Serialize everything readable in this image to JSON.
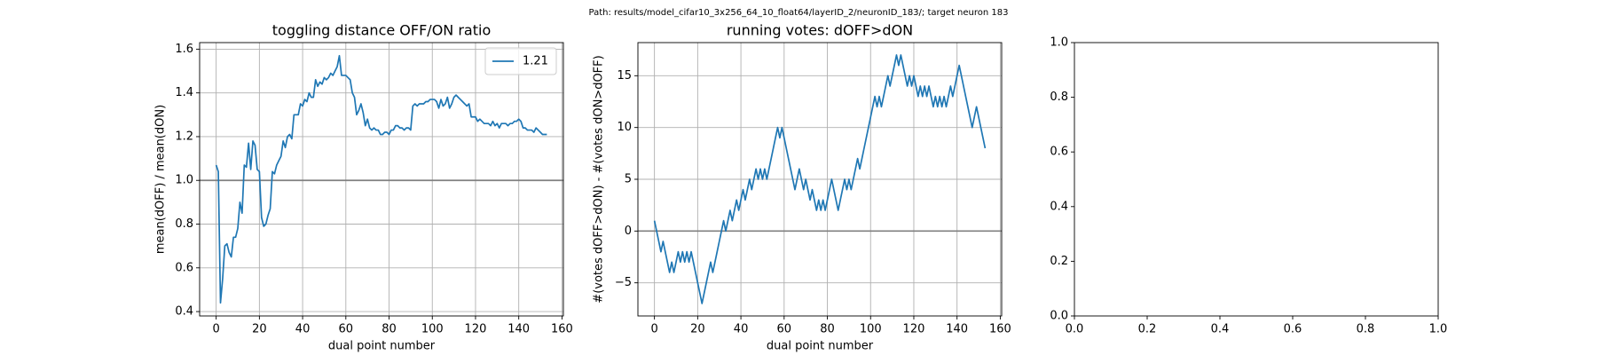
{
  "title": "Path: results/model_cifar10_3x256_64_10_float64/layerID_2/neuronID_183/; target neuron 183",
  "chart_data": [
    {
      "type": "line",
      "title": "toggling distance OFF/ON ratio",
      "xlabel": "dual point number",
      "ylabel": "mean(dOFF) / mean(dON)",
      "x": [
        0,
        1,
        2,
        3,
        4,
        5,
        6,
        7,
        8,
        9,
        10,
        11,
        12,
        13,
        14,
        15,
        16,
        17,
        18,
        19,
        20,
        21,
        22,
        23,
        24,
        25,
        26,
        27,
        28,
        29,
        30,
        31,
        32,
        33,
        34,
        35,
        36,
        37,
        38,
        39,
        40,
        41,
        42,
        43,
        44,
        45,
        46,
        47,
        48,
        49,
        50,
        51,
        52,
        53,
        54,
        55,
        56,
        57,
        58,
        59,
        60,
        61,
        62,
        63,
        64,
        65,
        66,
        67,
        68,
        69,
        70,
        71,
        72,
        73,
        74,
        75,
        76,
        77,
        78,
        79,
        80,
        81,
        82,
        83,
        84,
        85,
        86,
        87,
        88,
        89,
        90,
        91,
        92,
        93,
        94,
        95,
        96,
        97,
        98,
        99,
        100,
        101,
        102,
        103,
        104,
        105,
        106,
        107,
        108,
        109,
        110,
        111,
        112,
        113,
        114,
        115,
        116,
        117,
        118,
        119,
        120,
        121,
        122,
        123,
        124,
        125,
        126,
        127,
        128,
        129,
        130,
        131,
        132,
        133,
        134,
        135,
        136,
        137,
        138,
        139,
        140,
        141,
        142,
        143,
        144,
        145,
        146,
        147,
        148,
        149,
        150,
        151,
        152,
        153
      ],
      "series": [
        {
          "name": "1.21",
          "color": "#1f77b4",
          "values": [
            1.07,
            1.04,
            0.44,
            0.55,
            0.7,
            0.71,
            0.67,
            0.65,
            0.74,
            0.74,
            0.78,
            0.9,
            0.85,
            1.07,
            1.06,
            1.17,
            1.05,
            1.18,
            1.16,
            1.05,
            1.04,
            0.83,
            0.79,
            0.8,
            0.84,
            0.87,
            1.04,
            1.03,
            1.07,
            1.09,
            1.11,
            1.18,
            1.15,
            1.2,
            1.21,
            1.19,
            1.3,
            1.3,
            1.3,
            1.35,
            1.34,
            1.37,
            1.36,
            1.4,
            1.38,
            1.38,
            1.46,
            1.43,
            1.45,
            1.44,
            1.47,
            1.46,
            1.47,
            1.49,
            1.48,
            1.5,
            1.52,
            1.57,
            1.48,
            1.48,
            1.48,
            1.47,
            1.46,
            1.4,
            1.38,
            1.3,
            1.32,
            1.35,
            1.31,
            1.25,
            1.28,
            1.24,
            1.23,
            1.24,
            1.23,
            1.23,
            1.21,
            1.21,
            1.22,
            1.22,
            1.21,
            1.23,
            1.23,
            1.25,
            1.25,
            1.24,
            1.24,
            1.23,
            1.24,
            1.24,
            1.23,
            1.34,
            1.35,
            1.34,
            1.35,
            1.35,
            1.35,
            1.36,
            1.36,
            1.37,
            1.37,
            1.37,
            1.36,
            1.33,
            1.37,
            1.34,
            1.35,
            1.38,
            1.33,
            1.35,
            1.38,
            1.39,
            1.38,
            1.37,
            1.36,
            1.35,
            1.34,
            1.35,
            1.29,
            1.29,
            1.29,
            1.27,
            1.28,
            1.27,
            1.26,
            1.26,
            1.26,
            1.25,
            1.27,
            1.25,
            1.26,
            1.24,
            1.26,
            1.26,
            1.26,
            1.25,
            1.26,
            1.26,
            1.27,
            1.27,
            1.28,
            1.27,
            1.24,
            1.24,
            1.23,
            1.23,
            1.23,
            1.22,
            1.24,
            1.23,
            1.22,
            1.21,
            1.21,
            1.21
          ]
        }
      ],
      "hline": 1,
      "xlim": [
        -7.65,
        160.65
      ],
      "xticks": [
        0,
        20,
        40,
        60,
        80,
        100,
        120,
        140,
        160
      ],
      "ylim": [
        0.38,
        1.63
      ],
      "yticks": [
        0.4,
        0.6,
        0.8,
        {
          "value": 1,
          "label": "1.0"
        },
        1.2,
        1.4,
        1.6
      ],
      "grid": true,
      "legend": "upper right"
    },
    {
      "type": "line",
      "title": "running votes: dOFF>dON",
      "xlabel": "dual point number",
      "ylabel": "#(votes dOFF>dON) - #(votes dON>dOFF)",
      "x": [
        0,
        1,
        2,
        3,
        4,
        5,
        6,
        7,
        8,
        9,
        10,
        11,
        12,
        13,
        14,
        15,
        16,
        17,
        18,
        19,
        20,
        21,
        22,
        23,
        24,
        25,
        26,
        27,
        28,
        29,
        30,
        31,
        32,
        33,
        34,
        35,
        36,
        37,
        38,
        39,
        40,
        41,
        42,
        43,
        44,
        45,
        46,
        47,
        48,
        49,
        50,
        51,
        52,
        53,
        54,
        55,
        56,
        57,
        58,
        59,
        60,
        61,
        62,
        63,
        64,
        65,
        66,
        67,
        68,
        69,
        70,
        71,
        72,
        73,
        74,
        75,
        76,
        77,
        78,
        79,
        80,
        81,
        82,
        83,
        84,
        85,
        86,
        87,
        88,
        89,
        90,
        91,
        92,
        93,
        94,
        95,
        96,
        97,
        98,
        99,
        100,
        101,
        102,
        103,
        104,
        105,
        106,
        107,
        108,
        109,
        110,
        111,
        112,
        113,
        114,
        115,
        116,
        117,
        118,
        119,
        120,
        121,
        122,
        123,
        124,
        125,
        126,
        127,
        128,
        129,
        130,
        131,
        132,
        133,
        134,
        135,
        136,
        137,
        138,
        139,
        140,
        141,
        142,
        143,
        144,
        145,
        146,
        147,
        148,
        149,
        150,
        151,
        152,
        153
      ],
      "series": [
        {
          "color": "#1f77b4",
          "values": [
            1,
            0,
            -1,
            -2,
            -1,
            -2,
            -3,
            -4,
            -3,
            -4,
            -3,
            -2,
            -3,
            -2,
            -3,
            -2,
            -3,
            -2,
            -3,
            -4,
            -5,
            -6,
            -7,
            -6,
            -5,
            -4,
            -3,
            -4,
            -3,
            -2,
            -1,
            0,
            1,
            0,
            1,
            2,
            1,
            2,
            3,
            2,
            3,
            4,
            3,
            4,
            5,
            4,
            5,
            6,
            5,
            6,
            5,
            6,
            5,
            6,
            7,
            8,
            9,
            10,
            9,
            10,
            9,
            8,
            7,
            6,
            5,
            4,
            5,
            6,
            5,
            4,
            5,
            4,
            3,
            4,
            3,
            2,
            3,
            2,
            3,
            2,
            3,
            4,
            5,
            4,
            3,
            2,
            3,
            4,
            5,
            4,
            5,
            4,
            5,
            6,
            7,
            6,
            7,
            8,
            9,
            10,
            11,
            12,
            13,
            12,
            13,
            12,
            13,
            14,
            15,
            14,
            15,
            16,
            17,
            16,
            17,
            16,
            15,
            14,
            15,
            14,
            15,
            14,
            13,
            14,
            13,
            14,
            13,
            14,
            13,
            12,
            13,
            12,
            13,
            12,
            13,
            12,
            13,
            14,
            13,
            14,
            15,
            16,
            15,
            14,
            13,
            12,
            11,
            10,
            11,
            12,
            11,
            10,
            9,
            8
          ]
        }
      ],
      "hline": 0,
      "xlim": [
        -7.65,
        160.65
      ],
      "xticks": [
        0,
        20,
        40,
        60,
        80,
        100,
        120,
        140,
        160
      ],
      "ylim": [
        -8.2,
        18.2
      ],
      "yticks": [
        {
          "value": -5,
          "label": "−5"
        },
        0,
        5,
        10,
        15
      ],
      "grid": true
    },
    {
      "type": "line",
      "series": [],
      "xlim": [
        0,
        1
      ],
      "xticks": [
        {
          "value": 0,
          "label": "0.0"
        },
        0.2,
        0.4,
        0.6,
        0.8,
        {
          "value": 1,
          "label": "1.0"
        }
      ],
      "ylim": [
        0,
        1
      ],
      "yticks": [
        {
          "value": 0,
          "label": "0.0"
        },
        0.2,
        0.4,
        0.6,
        0.8,
        {
          "value": 1,
          "label": "1.0"
        }
      ],
      "grid": false
    }
  ]
}
